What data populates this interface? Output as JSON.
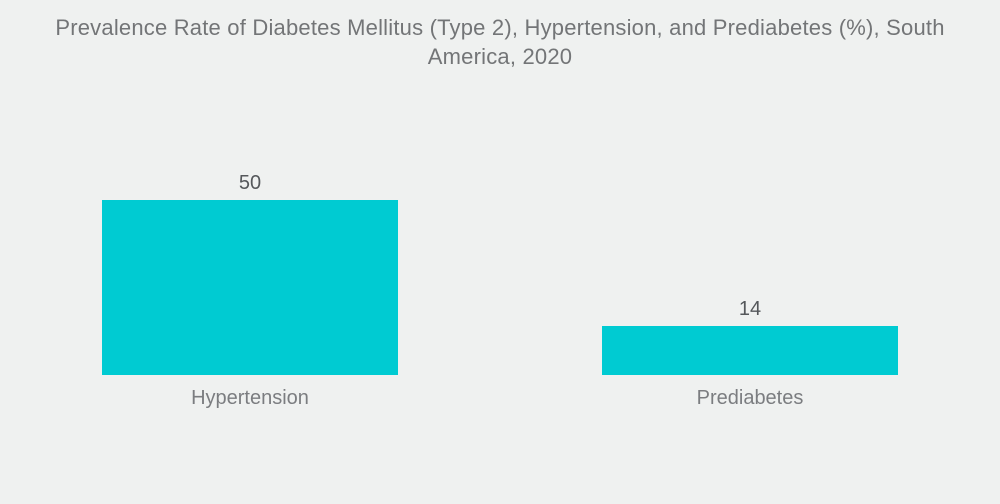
{
  "page": {
    "background_color": "#eff1f0"
  },
  "chart_data": {
    "type": "bar",
    "title": "Prevalence Rate of Diabetes Mellitus (Type 2), Hypertension, and Prediabetes (%), South America, 2020",
    "categories": [
      "Hypertension",
      "Prediabetes"
    ],
    "values": [
      50,
      14
    ],
    "unit": "%",
    "xlabel": "",
    "ylabel": "",
    "ylim": [
      0,
      50
    ],
    "grid": false,
    "legend": false,
    "axes_visible": false,
    "value_labels_position": "above-bar",
    "bar_color": "#00cbd2",
    "title_color": "#737577",
    "value_label_color": "#55585b",
    "category_label_color": "#7b7d80"
  }
}
